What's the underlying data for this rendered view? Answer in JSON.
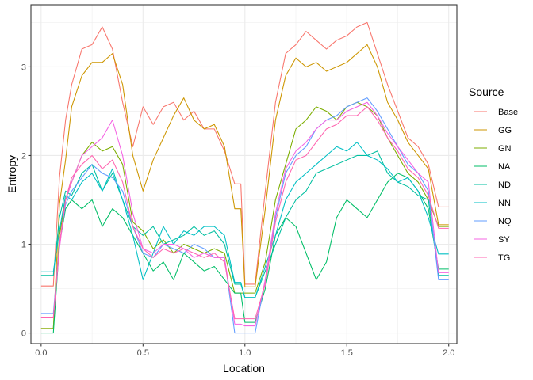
{
  "chart_data": {
    "type": "line",
    "title": "",
    "xlabel": "Location",
    "ylabel": "Entropy",
    "xlim": [
      -0.05,
      2.04
    ],
    "ylim": [
      -0.12,
      3.7
    ],
    "xticks": [
      0.0,
      0.5,
      1.0,
      1.5,
      2.0
    ],
    "xtick_labels": [
      "0.0",
      "0.5",
      "1.0",
      "1.5",
      "2.0"
    ],
    "yticks": [
      0,
      1,
      2,
      3
    ],
    "ytick_labels": [
      "0",
      "1",
      "2",
      "3"
    ],
    "grid": true,
    "legend": {
      "title": "Source",
      "placement": "right"
    },
    "x": [
      0.0,
      0.06,
      0.09,
      0.12,
      0.15,
      0.2,
      0.25,
      0.3,
      0.35,
      0.4,
      0.45,
      0.5,
      0.55,
      0.6,
      0.65,
      0.7,
      0.75,
      0.8,
      0.85,
      0.9,
      0.95,
      0.98,
      1.0,
      1.05,
      1.1,
      1.15,
      1.2,
      1.25,
      1.3,
      1.35,
      1.4,
      1.45,
      1.5,
      1.55,
      1.6,
      1.65,
      1.7,
      1.75,
      1.8,
      1.85,
      1.9,
      1.95,
      1.97,
      2.0
    ],
    "series": [
      {
        "name": "Base",
        "color": "#F8766D",
        "values": [
          0.53,
          0.53,
          1.75,
          2.4,
          2.8,
          3.2,
          3.25,
          3.45,
          3.2,
          2.6,
          2.1,
          2.55,
          2.35,
          2.55,
          2.6,
          2.4,
          2.5,
          2.3,
          2.3,
          2.05,
          1.68,
          1.68,
          0.55,
          0.55,
          1.6,
          2.6,
          3.15,
          3.25,
          3.4,
          3.3,
          3.2,
          3.3,
          3.35,
          3.45,
          3.5,
          3.15,
          2.8,
          2.5,
          2.2,
          2.1,
          1.9,
          1.42,
          1.42,
          1.42
        ]
      },
      {
        "name": "GG",
        "color": "#CD9600",
        "values": [
          0.05,
          0.05,
          1.45,
          1.95,
          2.55,
          2.9,
          3.05,
          3.05,
          3.15,
          2.8,
          2.0,
          1.6,
          1.95,
          2.2,
          2.45,
          2.65,
          2.4,
          2.3,
          2.35,
          2.1,
          1.4,
          1.4,
          0.52,
          0.52,
          1.4,
          2.4,
          2.9,
          3.1,
          3.0,
          3.05,
          2.95,
          3.0,
          3.05,
          3.15,
          3.25,
          3.0,
          2.6,
          2.4,
          2.15,
          2.0,
          1.85,
          1.22,
          1.22,
          1.22
        ]
      },
      {
        "name": "GN",
        "color": "#7CAE00",
        "values": [
          0.05,
          0.05,
          1.1,
          1.5,
          1.7,
          2.0,
          2.15,
          2.05,
          2.1,
          1.9,
          1.25,
          1.15,
          0.95,
          1.05,
          0.9,
          1.0,
          0.95,
          0.9,
          0.95,
          0.9,
          0.45,
          0.45,
          0.45,
          0.45,
          0.8,
          1.5,
          1.9,
          2.3,
          2.4,
          2.55,
          2.5,
          2.4,
          2.55,
          2.6,
          2.55,
          2.45,
          2.2,
          2.0,
          1.8,
          1.7,
          1.5,
          1.2,
          1.2,
          1.2
        ]
      },
      {
        "name": "NA",
        "color": "#00BE67",
        "values": [
          0.0,
          0.0,
          1.0,
          1.4,
          1.5,
          1.4,
          1.5,
          1.2,
          1.4,
          1.3,
          1.1,
          0.9,
          0.7,
          0.8,
          0.6,
          0.9,
          0.8,
          0.7,
          0.75,
          0.6,
          0.45,
          0.45,
          0.12,
          0.12,
          0.5,
          1.1,
          1.3,
          1.2,
          0.9,
          0.6,
          0.8,
          1.3,
          1.5,
          1.4,
          1.3,
          1.5,
          1.7,
          1.8,
          1.75,
          1.6,
          1.4,
          0.72,
          0.72,
          0.72
        ]
      },
      {
        "name": "ND",
        "color": "#00BFA0",
        "values": [
          0.65,
          0.65,
          1.3,
          1.6,
          1.55,
          1.8,
          1.9,
          1.6,
          1.8,
          1.5,
          1.2,
          1.1,
          1.2,
          1.0,
          1.05,
          1.1,
          1.2,
          1.1,
          1.15,
          1.0,
          0.55,
          0.55,
          0.4,
          0.4,
          0.7,
          1.0,
          1.3,
          1.5,
          1.6,
          1.8,
          1.85,
          1.9,
          1.95,
          2.0,
          2.0,
          2.05,
          1.8,
          1.7,
          1.65,
          1.55,
          1.5,
          0.65,
          0.65,
          0.65
        ]
      },
      {
        "name": "NN",
        "color": "#00BFC4",
        "values": [
          0.69,
          0.69,
          1.15,
          1.55,
          1.5,
          1.7,
          1.8,
          1.6,
          1.85,
          1.5,
          1.1,
          0.6,
          0.9,
          1.2,
          1.0,
          1.15,
          1.1,
          1.2,
          1.2,
          1.1,
          0.57,
          0.57,
          0.4,
          0.4,
          0.75,
          1.1,
          1.5,
          1.7,
          1.8,
          1.9,
          2.0,
          2.1,
          2.05,
          2.15,
          2.0,
          1.95,
          1.85,
          1.7,
          1.75,
          1.6,
          1.3,
          0.89,
          0.89,
          0.89
        ]
      },
      {
        "name": "NQ",
        "color": "#619CFF",
        "values": [
          0.22,
          0.22,
          1.0,
          1.45,
          1.6,
          1.75,
          1.9,
          1.8,
          1.75,
          1.6,
          1.2,
          0.9,
          0.85,
          1.0,
          0.95,
          0.9,
          1.0,
          0.95,
          0.85,
          0.85,
          0.0,
          0.0,
          0.0,
          0.0,
          0.6,
          1.3,
          1.8,
          2.0,
          2.1,
          2.3,
          2.4,
          2.45,
          2.55,
          2.6,
          2.65,
          2.5,
          2.3,
          2.1,
          1.9,
          1.8,
          1.6,
          0.6,
          0.6,
          0.6
        ]
      },
      {
        "name": "SY",
        "color": "#F564E3",
        "values": [
          0.17,
          0.17,
          0.95,
          1.5,
          1.7,
          2.0,
          2.1,
          2.2,
          2.4,
          2.0,
          1.35,
          0.95,
          0.9,
          1.0,
          1.0,
          0.95,
          0.85,
          0.9,
          0.85,
          0.85,
          0.1,
          0.1,
          0.08,
          0.08,
          0.6,
          1.35,
          1.85,
          2.05,
          2.15,
          2.3,
          2.4,
          2.4,
          2.5,
          2.55,
          2.6,
          2.45,
          2.25,
          2.1,
          1.95,
          1.8,
          1.7,
          0.68,
          0.68,
          0.68
        ]
      },
      {
        "name": "TG",
        "color": "#FF64B0",
        "values": [
          0.17,
          0.17,
          1.0,
          1.5,
          1.75,
          1.9,
          2.0,
          1.85,
          1.95,
          1.7,
          1.2,
          0.95,
          0.85,
          0.95,
          0.9,
          0.95,
          0.9,
          0.85,
          0.9,
          0.8,
          0.16,
          0.16,
          0.16,
          0.16,
          0.55,
          1.25,
          1.7,
          1.95,
          2.0,
          2.15,
          2.3,
          2.35,
          2.45,
          2.45,
          2.55,
          2.4,
          2.2,
          2.05,
          1.85,
          1.75,
          1.55,
          1.18,
          1.18,
          1.18
        ]
      }
    ]
  }
}
